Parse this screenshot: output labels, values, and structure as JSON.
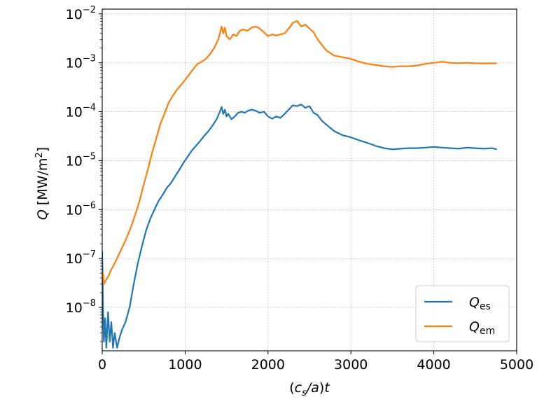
{
  "chart_data": {
    "type": "line",
    "xlabel": "(c_s/a)t",
    "ylabel": "Q [MW/m^2]",
    "xlim": [
      0,
      5000
    ],
    "ylim": [
      1.3e-09,
      0.0125
    ],
    "yscale": "log",
    "grid": true,
    "legend_position": "lower-right",
    "x_ticks": [
      0,
      1000,
      2000,
      3000,
      4000,
      5000
    ],
    "x_tick_labels": [
      "0",
      "1000",
      "2000",
      "3000",
      "4000",
      "5000"
    ],
    "y_ticks": [
      1e-08,
      1e-07,
      1e-06,
      1e-05,
      0.0001,
      0.001,
      0.01
    ],
    "y_tick_exponents": [
      "−8",
      "−7",
      "−6",
      "−5",
      "−4",
      "−3",
      "−2"
    ],
    "y_tick_base": "10",
    "series": [
      {
        "name": "Q_es",
        "legend_main": "Q",
        "legend_sub": "es",
        "color": "#1f77b4",
        "x": [
          0,
          10,
          20,
          35,
          50,
          70,
          90,
          110,
          130,
          150,
          180,
          210,
          240,
          280,
          330,
          380,
          430,
          480,
          530,
          580,
          630,
          680,
          730,
          780,
          830,
          880,
          930,
          980,
          1030,
          1080,
          1130,
          1180,
          1230,
          1280,
          1330,
          1380,
          1420,
          1440,
          1460,
          1480,
          1500,
          1520,
          1560,
          1600,
          1640,
          1680,
          1720,
          1760,
          1800,
          1850,
          1900,
          1950,
          2000,
          2050,
          2100,
          2150,
          2200,
          2250,
          2300,
          2350,
          2400,
          2450,
          2500,
          2550,
          2600,
          2650,
          2700,
          2800,
          2900,
          3000,
          3100,
          3200,
          3300,
          3400,
          3500,
          3600,
          3700,
          3800,
          3900,
          4000,
          4100,
          4200,
          4300,
          4400,
          4500,
          4600,
          4700,
          4760
        ],
        "y": [
          1.4e-07,
          1e-08,
          2e-09,
          6e-09,
          1.5e-09,
          8e-09,
          2e-09,
          5e-09,
          1.5e-09,
          3e-09,
          1.5e-09,
          2.5e-09,
          3.5e-09,
          5e-09,
          1e-08,
          3e-08,
          8e-08,
          1.8e-07,
          3.8e-07,
          6.5e-07,
          1e-06,
          1.5e-06,
          2e-06,
          2.8e-06,
          3.5e-06,
          4.8e-06,
          6.5e-06,
          9e-06,
          1.2e-05,
          1.6e-05,
          2e-05,
          2.5e-05,
          3.2e-05,
          4e-05,
          5.2e-05,
          7e-05,
          0.0001,
          0.000125,
          9e-05,
          0.00011,
          8e-05,
          9e-05,
          7e-05,
          8e-05,
          9.5e-05,
          0.0001,
          9.5e-05,
          0.000105,
          0.00011,
          0.000105,
          9.5e-05,
          0.0001,
          8e-05,
          7.2e-05,
          8e-05,
          7.5e-05,
          9e-05,
          0.00011,
          0.000135,
          0.00013,
          0.00014,
          0.00012,
          0.00013,
          9.5e-05,
          8.5e-05,
          6.5e-05,
          5.5e-05,
          4e-05,
          3.3e-05,
          3e-05,
          2.6e-05,
          2.3e-05,
          2e-05,
          1.8e-05,
          1.7e-05,
          1.75e-05,
          1.8e-05,
          1.8e-05,
          1.85e-05,
          1.9e-05,
          1.85e-05,
          1.8e-05,
          1.75e-05,
          1.85e-05,
          1.8e-05,
          1.75e-05,
          1.8e-05,
          1.7e-05
        ]
      },
      {
        "name": "Q_em",
        "legend_main": "Q",
        "legend_sub": "em",
        "color": "#ff7f0e",
        "x": [
          0,
          10,
          20,
          40,
          60,
          80,
          100,
          150,
          200,
          250,
          300,
          350,
          400,
          450,
          500,
          550,
          600,
          650,
          700,
          750,
          800,
          850,
          900,
          950,
          1000,
          1050,
          1100,
          1150,
          1200,
          1250,
          1300,
          1350,
          1400,
          1420,
          1440,
          1460,
          1480,
          1500,
          1540,
          1580,
          1620,
          1660,
          1700,
          1750,
          1800,
          1850,
          1900,
          1950,
          2000,
          2050,
          2100,
          2150,
          2200,
          2250,
          2300,
          2350,
          2400,
          2450,
          2500,
          2550,
          2600,
          2700,
          2800,
          2900,
          3000,
          3100,
          3200,
          3300,
          3400,
          3500,
          3600,
          3700,
          3800,
          3900,
          4000,
          4100,
          4200,
          4300,
          4400,
          4500,
          4600,
          4700,
          4760
        ],
        "y": [
          4e-08,
          5e-08,
          3e-08,
          3.5e-08,
          4e-08,
          4.5e-08,
          5.5e-08,
          8e-08,
          1.2e-07,
          1.8e-07,
          2.8e-07,
          4.5e-07,
          8e-07,
          1.5e-06,
          3.2e-06,
          6.5e-06,
          1.4e-05,
          2.8e-05,
          5.5e-05,
          9e-05,
          0.00015,
          0.00021,
          0.00028,
          0.00035,
          0.00045,
          0.00058,
          0.00075,
          0.00095,
          0.00105,
          0.0012,
          0.0015,
          0.002,
          0.003,
          0.004,
          0.0055,
          0.004,
          0.0052,
          0.0035,
          0.003,
          0.0038,
          0.0035,
          0.0045,
          0.0048,
          0.0045,
          0.0052,
          0.0055,
          0.005,
          0.0042,
          0.0035,
          0.0038,
          0.0036,
          0.0038,
          0.004,
          0.005,
          0.0065,
          0.0072,
          0.0055,
          0.006,
          0.005,
          0.0042,
          0.003,
          0.0018,
          0.0014,
          0.0013,
          0.0012,
          0.00105,
          0.00095,
          0.0009,
          0.00085,
          0.00082,
          0.00085,
          0.00085,
          0.00088,
          0.00095,
          0.001,
          0.00105,
          0.001,
          0.00098,
          0.001,
          0.00098,
          0.00097,
          0.00098,
          0.00097
        ]
      }
    ]
  }
}
